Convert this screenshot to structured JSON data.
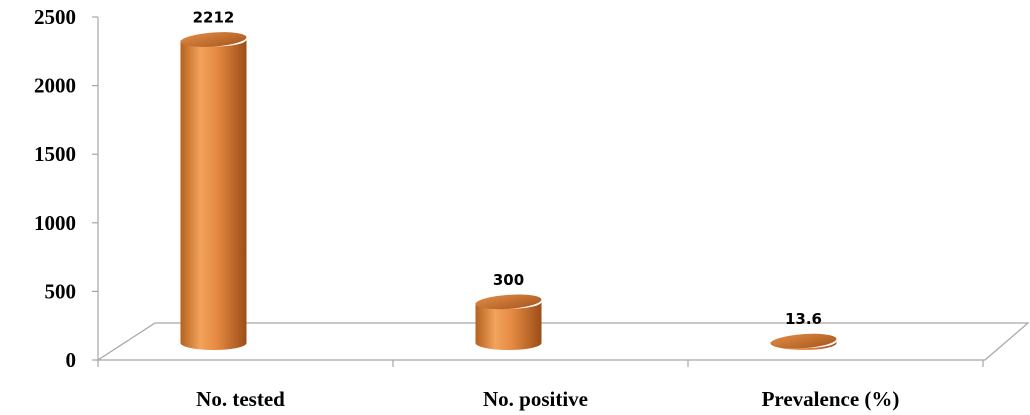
{
  "chart_data": {
    "type": "bar",
    "style": "3d-cylinder",
    "categories": [
      "No. tested",
      "No. positive",
      "Prevalence (%)"
    ],
    "values": [
      2212,
      300,
      13.6
    ],
    "value_labels": [
      "2212",
      "300",
      "13.6"
    ],
    "ylim": [
      0,
      2500
    ],
    "yticks": [
      "0",
      "500",
      "1000",
      "1500",
      "2000",
      "2500"
    ],
    "grid": false,
    "legend": "none",
    "colors": {
      "bar": "#e0823a",
      "bar_light": "#f4a867",
      "bar_dark": "#a9541c",
      "floor": "#a6a6a6"
    }
  }
}
